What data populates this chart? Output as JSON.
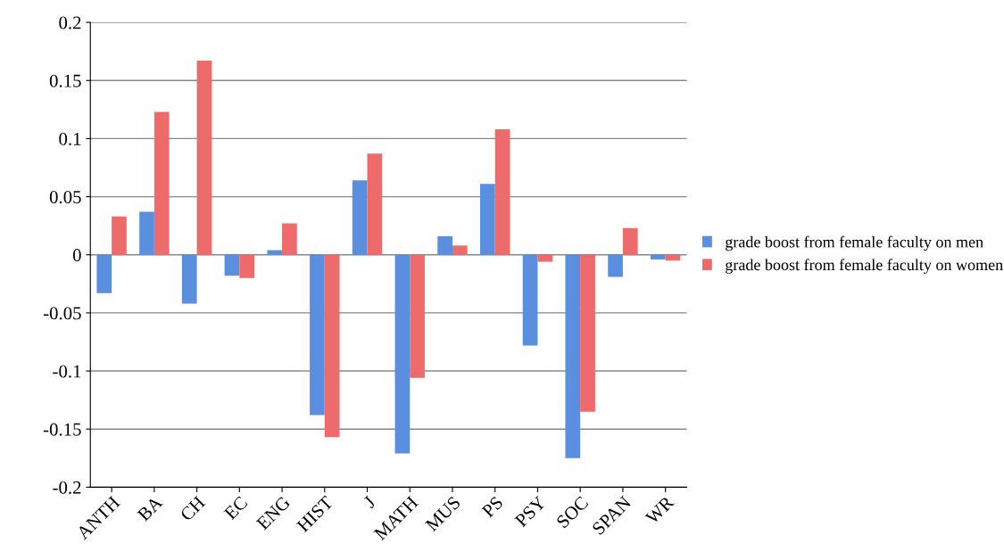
{
  "chart_data": {
    "type": "bar",
    "categories": [
      "ANTH",
      "BA",
      "CH",
      "EC",
      "ENG",
      "HIST",
      "J",
      "MATH",
      "MUS",
      "PS",
      "PSY",
      "SOC",
      "SPAN",
      "WR"
    ],
    "series": [
      {
        "name": "grade boost from female faculty on men",
        "color": "#5a8fe0",
        "values": [
          -0.033,
          0.037,
          -0.042,
          -0.018,
          0.004,
          -0.138,
          0.064,
          -0.171,
          0.016,
          0.061,
          -0.078,
          -0.175,
          -0.019,
          -0.004
        ]
      },
      {
        "name": "grade boost from female faculty on women",
        "color": "#ee6b6b",
        "values": [
          0.033,
          0.123,
          0.167,
          -0.02,
          0.027,
          -0.157,
          0.087,
          -0.106,
          0.008,
          0.108,
          -0.006,
          -0.135,
          0.023,
          -0.005
        ]
      }
    ],
    "ylim": [
      -0.2,
      0.2
    ],
    "yticks": [
      -0.2,
      -0.15,
      -0.1,
      -0.05,
      0,
      0.05,
      0.1,
      0.15,
      0.2
    ],
    "grid": "y",
    "legend": "right"
  }
}
